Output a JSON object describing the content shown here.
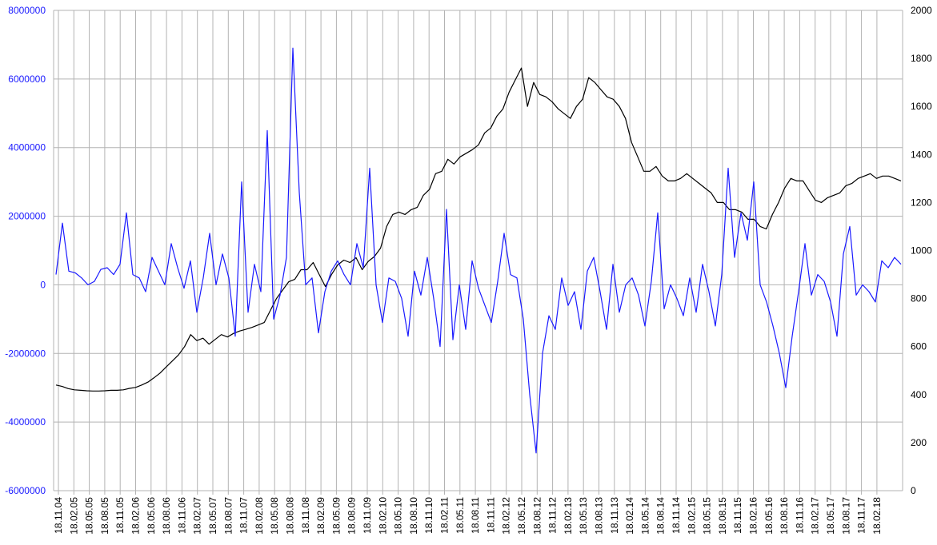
{
  "chart_data": {
    "type": "line",
    "title": "",
    "xlabel": "",
    "ylabel": "",
    "y2label": "",
    "grid": true,
    "legend": "none",
    "x_tick_labels": [
      "18.11.04",
      "18.02.05",
      "18.05.05",
      "18.08.05",
      "18.11.05",
      "18.02.06",
      "18.05.06",
      "18.08.06",
      "18.11.06",
      "18.02.07",
      "18.05.07",
      "18.08.07",
      "18.11.07",
      "18.02.08",
      "18.05.08",
      "18.08.08",
      "18.11.08",
      "18.02.09",
      "18.05.09",
      "18.08.09",
      "18.11.09",
      "18.02.10",
      "18.05.10",
      "18.08.10",
      "18.11.10",
      "18.02.11",
      "18.05.11",
      "18.08.11",
      "18.11.11",
      "18.02.12",
      "18.05.12",
      "18.08.12",
      "18.11.12",
      "18.02.13",
      "18.05.13",
      "18.08.13",
      "18.11.13",
      "18.02.14",
      "18.05.14",
      "18.08.14",
      "18.11.14",
      "18.02.15",
      "18.05.15",
      "18.08.15",
      "18.11.15",
      "18.02.16",
      "18.05.16",
      "18.08.16",
      "18.11.16",
      "18.02.17",
      "18.05.17",
      "18.08.17",
      "18.11.17",
      "18.02.18"
    ],
    "y_left": {
      "min": -6000000,
      "max": 8000000,
      "step": 2000000,
      "color": "#1a1aff",
      "tick_labels": [
        "-6000000",
        "-4000000",
        "-2000000",
        "0",
        "2000000",
        "4000000",
        "6000000",
        "8000000"
      ]
    },
    "y_right": {
      "min": 0,
      "max": 2000,
      "step": 200,
      "color": "#000000",
      "tick_labels": [
        "0",
        "200",
        "400",
        "600",
        "800",
        "1000",
        "1200",
        "1400",
        "1600",
        "1800",
        "2000"
      ]
    },
    "series": [
      {
        "axis": "right",
        "color": "#000000",
        "values": [
          440,
          434,
          425,
          420,
          418,
          416,
          415,
          415,
          416,
          418,
          418,
          420,
          426,
          430,
          440,
          452,
          470,
          490,
          515,
          540,
          565,
          600,
          650,
          625,
          635,
          610,
          630,
          650,
          640,
          655,
          665,
          672,
          680,
          690,
          700,
          750,
          800,
          835,
          870,
          880,
          920,
          920,
          950,
          900,
          850,
          900,
          940,
          960,
          950,
          970,
          920,
          955,
          975,
          1010,
          1100,
          1150,
          1160,
          1150,
          1170,
          1180,
          1230,
          1255,
          1320,
          1330,
          1380,
          1360,
          1390,
          1405,
          1420,
          1440,
          1490,
          1510,
          1560,
          1590,
          1660,
          1710,
          1760,
          1600,
          1700,
          1650,
          1640,
          1620,
          1590,
          1570,
          1550,
          1600,
          1630,
          1720,
          1700,
          1670,
          1640,
          1630,
          1600,
          1550,
          1450,
          1390,
          1330,
          1330,
          1350,
          1310,
          1290,
          1290,
          1300,
          1320,
          1300,
          1280,
          1260,
          1240,
          1200,
          1200,
          1170,
          1170,
          1160,
          1130,
          1130,
          1100,
          1090,
          1150,
          1200,
          1260,
          1300,
          1290,
          1290,
          1250,
          1210,
          1200,
          1220,
          1230,
          1240,
          1270,
          1280,
          1300,
          1310,
          1320,
          1300,
          1310,
          1310,
          1300,
          1290
        ]
      },
      {
        "axis": "left",
        "color": "#1a1aff",
        "values": [
          300000,
          1800000,
          400000,
          350000,
          200000,
          0,
          100000,
          450000,
          500000,
          300000,
          600000,
          2100000,
          300000,
          200000,
          -200000,
          800000,
          400000,
          0,
          1200000,
          500000,
          -100000,
          700000,
          -800000,
          200000,
          1500000,
          0,
          900000,
          200000,
          -1500000,
          3000000,
          -800000,
          600000,
          -200000,
          4500000,
          -1000000,
          -300000,
          800000,
          6900000,
          2700000,
          0,
          200000,
          -1400000,
          -200000,
          400000,
          700000,
          300000,
          0,
          1200000,
          500000,
          3400000,
          0,
          -1100000,
          200000,
          100000,
          -400000,
          -1500000,
          400000,
          -300000,
          800000,
          -400000,
          -1800000,
          2200000,
          -1600000,
          0,
          -1300000,
          700000,
          -100000,
          -600000,
          -1100000,
          100000,
          1500000,
          300000,
          200000,
          -1000000,
          -3200000,
          -4900000,
          -2000000,
          -900000,
          -1300000,
          200000,
          -600000,
          -200000,
          -1300000,
          400000,
          800000,
          -200000,
          -1300000,
          600000,
          -800000,
          0,
          200000,
          -300000,
          -1200000,
          100000,
          2100000,
          -700000,
          0,
          -400000,
          -900000,
          200000,
          -800000,
          600000,
          -200000,
          -1200000,
          300000,
          3400000,
          800000,
          2100000,
          1300000,
          3000000,
          0,
          -500000,
          -1200000,
          -2000000,
          -3000000,
          -1500000,
          -200000,
          1200000,
          -300000,
          300000,
          100000,
          -500000,
          -1500000,
          900000,
          1700000,
          -300000,
          0,
          -200000,
          -500000,
          700000,
          500000,
          800000,
          600000
        ]
      }
    ]
  }
}
